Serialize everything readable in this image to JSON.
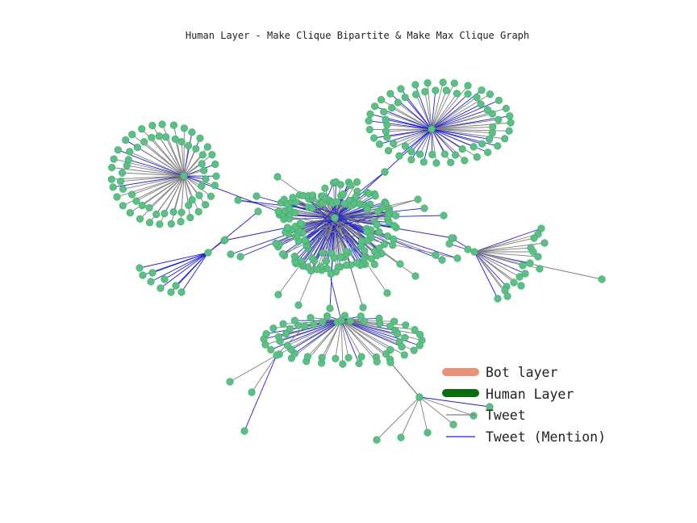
{
  "title": "Human Layer - Make Clique Bipartite & Make Max Clique Graph",
  "legend": {
    "bot_layer": "Bot layer",
    "human_layer": "Human Layer",
    "tweet": "Tweet",
    "tweet_mention": "Tweet (Mention)"
  },
  "colors": {
    "node": "#5cbf85",
    "node_edge": "#3ea86a",
    "bot_layer": "#e8927a",
    "human_layer": "#0a6b10",
    "tweet": "#7f7f7f",
    "tweet_mention": "#1f1fd0"
  },
  "clusters": [
    {
      "id": "ring-top-right",
      "shape": "ring",
      "nodes": 64,
      "mention_share": 0.55
    },
    {
      "id": "ring-left",
      "shape": "ring",
      "nodes": 62,
      "mention_share": 0.25
    },
    {
      "id": "dense-center",
      "shape": "dense-ring",
      "nodes": 150,
      "mention_share": 0.5
    },
    {
      "id": "ring-bottom",
      "shape": "ring",
      "nodes": 56,
      "mention_share": 0.35
    },
    {
      "id": "fan-right",
      "shape": "fan",
      "nodes": 22,
      "mention_share": 0.3
    },
    {
      "id": "fan-left",
      "shape": "fan",
      "nodes": 9,
      "mention_share": 1.0
    },
    {
      "id": "fan-bottom-right",
      "shape": "fan",
      "nodes": 9,
      "mention_share": 0.35
    },
    {
      "id": "chain-bottom-left",
      "shape": "chain",
      "nodes": 5,
      "mention_share": 0.2
    }
  ]
}
